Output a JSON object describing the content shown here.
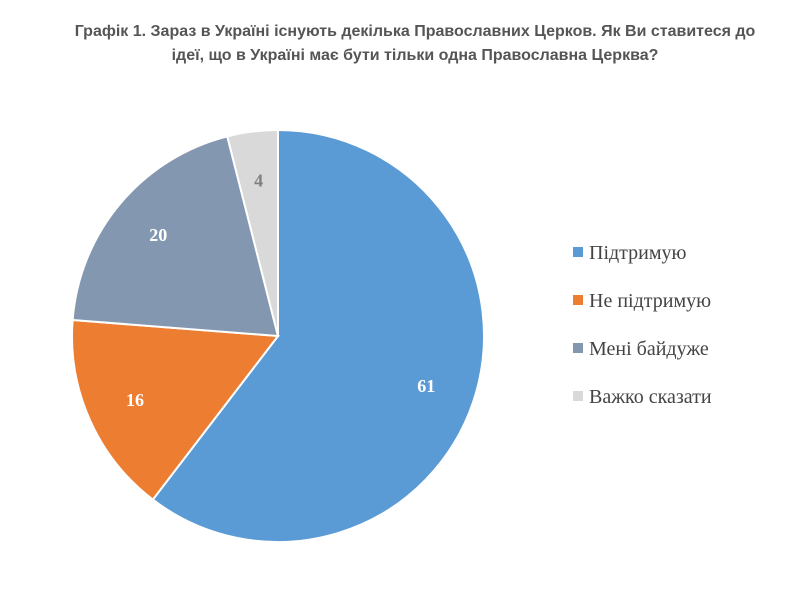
{
  "chart_data": {
    "type": "pie",
    "title_line1": "Графік 1. Зараз в Україні існують декілька Православних Церков. Як Ви ставитеся до",
    "title_line2": "ідеї, що в Україні має бути тільки одна Православна Церква?",
    "categories": [
      "Підтримую",
      "Не підтримую",
      "Мені байдуже",
      "Важко сказати"
    ],
    "values": [
      61,
      16,
      20,
      4
    ],
    "value_labels": [
      "61",
      "16",
      "20",
      "4"
    ],
    "colors": [
      "#5B9BD5",
      "#ED7D31",
      "#8497B0",
      "#D9D9D9"
    ],
    "label_colors": [
      "#ffffff",
      "#ffffff",
      "#ffffff",
      "#7f7f7f"
    ],
    "legend_position": "right"
  }
}
